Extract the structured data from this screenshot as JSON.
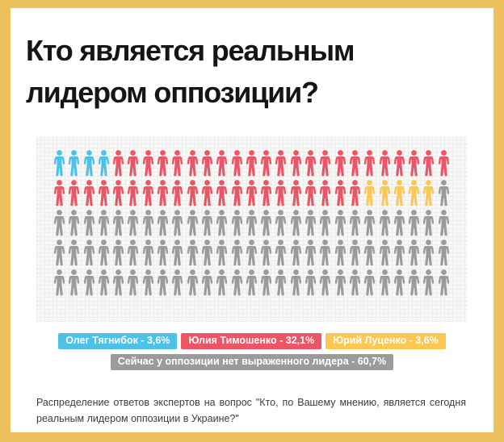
{
  "header": {
    "title": "Кто является реальным лидером оппозиции?"
  },
  "chart_data": {
    "type": "pictogram",
    "unit": "person-icon",
    "rows": 5,
    "cols": 27,
    "total_icons": 135,
    "legend_position": "bottom-center",
    "series": [
      {
        "name": "Олег Тягнибок",
        "pct_label": "3,6%",
        "value_pct": 3.6,
        "icons": 4,
        "color": "#4EC1E9",
        "legend_label": "Олег Тягнибок - 3,6%"
      },
      {
        "name": "Юлия Тимошенко",
        "pct_label": "32,1%",
        "value_pct": 32.1,
        "icons": 44,
        "color": "#EC5564",
        "legend_label": "Юлия Тимошенко - 32,1%"
      },
      {
        "name": "Юрий Луценко",
        "pct_label": "3,6%",
        "value_pct": 3.6,
        "icons": 5,
        "color": "#FDC753",
        "legend_label": "Юрий Луценко - 3,6%"
      },
      {
        "name": "Сейчас у оппозиции нет выраженного лидера",
        "pct_label": "60,7%",
        "value_pct": 60.7,
        "icons": 82,
        "color": "#9B9B9B",
        "legend_label": "Сейчас у оппозиции нет выраженного лидера - 60,7%"
      }
    ]
  },
  "caption": {
    "text": "Распределение ответов экспертов на вопрос \"Кто, по Вашему мнению, является сегодня реальным лидером оппозиции в Украине?\""
  },
  "colors": {
    "frame": "#ECC15B",
    "panel_background": "#F8F8F7",
    "grid_line": "#EDEDEC",
    "title_text": "#151515",
    "caption_text": "#3D3D3D"
  }
}
